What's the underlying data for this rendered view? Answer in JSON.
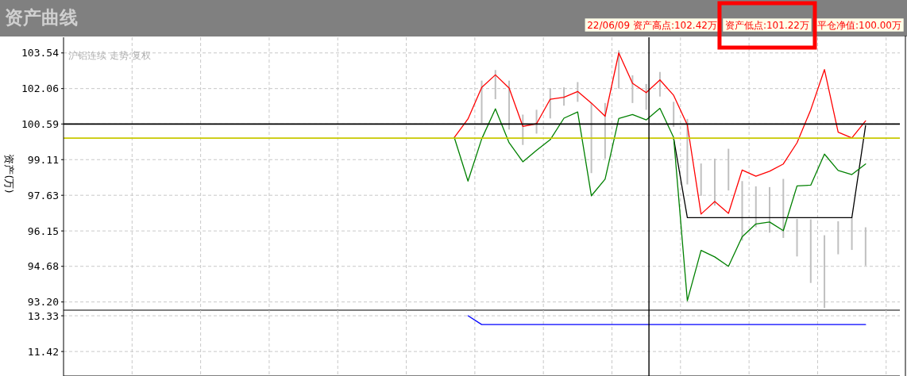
{
  "chart_data": [
    {
      "type": "line",
      "title": "资产曲线",
      "ylabel": "资产(万)",
      "annotations": [
        "22/06/09 资产高点:102.42万",
        "资产低点:101.22万",
        "平仓净值:100.00万",
        "沪铝连续 走势:复权"
      ],
      "categories": [
        null,
        null,
        null,
        null,
        null,
        null,
        null,
        null,
        null,
        null,
        null,
        null,
        null,
        null,
        null,
        null,
        null,
        null,
        null,
        null,
        null,
        null,
        null,
        null,
        null,
        null,
        null,
        null,
        null,
        null,
        null,
        null,
        null,
        null,
        null,
        null,
        null,
        null,
        null,
        null,
        null,
        null,
        null,
        null,
        null,
        null,
        null,
        null,
        null,
        null,
        null,
        null,
        null,
        null,
        null,
        null,
        null,
        null,
        null,
        null,
        null
      ],
      "ylim": [
        92.86,
        104.19
      ],
      "yticks": [
        {
          "value": 93.2,
          "label": "93.20"
        },
        94.68,
        96.15,
        97.63,
        99.11,
        100.59,
        102.06,
        103.54
      ],
      "grid": true,
      "tick_labels": "y",
      "series": [
        {
          "type": "bar",
          "color": "#c0c0c0",
          "base": [
            null,
            null,
            null,
            null,
            null,
            null,
            null,
            null,
            null,
            null,
            null,
            null,
            null,
            null,
            null,
            null,
            null,
            null,
            null,
            null,
            null,
            null,
            null,
            null,
            null,
            null,
            null,
            null,
            null,
            null,
            100.63,
            101.62,
            100.36,
            99.72,
            100.19,
            100.82,
            101.35,
            101.51,
            98.55,
            99.15,
            102.06,
            101.46,
            101.18,
            101.73,
            100.47,
            98.08,
            97.61,
            97.2,
            97.83,
            95.75,
            96.3,
            96.08,
            95.86,
            95.09,
            93.99,
            92.95,
            95.18,
            95.36,
            94.71,
            null,
            null
          ],
          "values": [
            null,
            null,
            null,
            null,
            null,
            null,
            null,
            null,
            null,
            null,
            null,
            null,
            null,
            null,
            null,
            null,
            null,
            null,
            null,
            null,
            null,
            null,
            null,
            null,
            null,
            null,
            null,
            null,
            null,
            null,
            1.76,
            1.21,
            2.03,
            1.26,
            0.99,
            1.26,
            0.76,
            0.82,
            2.91,
            2.31,
            1.59,
            1.15,
            1.07,
            1.02,
            1.04,
            2.72,
            1.34,
            1.95,
            1.73,
            2.47,
            1.7,
            1.89,
            2.45,
            1.56,
            2.64,
            3.02,
            1.37,
            1.34,
            1.59,
            null,
            null
          ]
        },
        {
          "color": "#000000",
          "values": [
            null,
            null,
            null,
            null,
            null,
            null,
            null,
            null,
            null,
            null,
            null,
            null,
            null,
            null,
            null,
            null,
            null,
            null,
            null,
            null,
            null,
            null,
            null,
            null,
            null,
            null,
            null,
            null,
            null,
            null,
            null,
            null,
            null,
            null,
            null,
            null,
            null,
            null,
            null,
            null,
            null,
            null,
            null,
            null,
            100.0,
            96.7,
            96.7,
            96.7,
            96.7,
            96.7,
            96.7,
            96.7,
            96.7,
            96.7,
            96.7,
            96.7,
            96.7,
            96.7,
            100.52,
            null,
            null
          ]
        },
        {
          "color": "#ff0000",
          "values": [
            null,
            null,
            null,
            null,
            null,
            null,
            null,
            null,
            null,
            null,
            null,
            null,
            null,
            null,
            null,
            null,
            null,
            null,
            null,
            null,
            null,
            null,
            null,
            null,
            null,
            null,
            null,
            null,
            100.03,
            100.8,
            102.11,
            102.63,
            102.08,
            100.49,
            100.6,
            101.62,
            101.7,
            101.94,
            101.46,
            100.91,
            103.54,
            102.28,
            101.89,
            102.42,
            101.78,
            100.55,
            96.85,
            97.37,
            96.88,
            98.68,
            98.42,
            98.63,
            98.93,
            99.81,
            101.18,
            102.85,
            100.25,
            100.01,
            100.72,
            null,
            null
          ]
        },
        {
          "color": "#008000",
          "values": [
            null,
            null,
            null,
            null,
            null,
            null,
            null,
            null,
            null,
            null,
            null,
            null,
            null,
            null,
            null,
            null,
            null,
            null,
            null,
            null,
            null,
            null,
            null,
            null,
            null,
            null,
            null,
            null,
            100.03,
            98.22,
            99.97,
            101.22,
            99.81,
            99.02,
            99.5,
            99.94,
            100.83,
            101.09,
            97.61,
            98.3,
            100.82,
            100.98,
            100.76,
            101.24,
            100.03,
            93.25,
            95.34,
            95.07,
            94.68,
            95.91,
            96.44,
            96.52,
            96.16,
            98.02,
            98.05,
            99.34,
            98.66,
            98.49,
            98.93,
            null,
            null
          ]
        }
      ],
      "ref_lines": [
        {
          "axis": "y",
          "value": 100.59,
          "color": "#000000"
        },
        {
          "axis": "y",
          "value": 100.0,
          "color": "#c8c800"
        }
      ]
    },
    {
      "type": "line",
      "categories": [
        null,
        null,
        null,
        null,
        null,
        null,
        null,
        null,
        null,
        null,
        null,
        null,
        null,
        null,
        null,
        null,
        null,
        null,
        null,
        null,
        null,
        null,
        null,
        null,
        null,
        null,
        null,
        null,
        null,
        null,
        null,
        null,
        null,
        null,
        null,
        null,
        null,
        null,
        null,
        null,
        null,
        null,
        null,
        null,
        null,
        null,
        null,
        null,
        null,
        null,
        null,
        null,
        null,
        null,
        null,
        null,
        null,
        null,
        null,
        null,
        null
      ],
      "ylim": [
        10.11,
        13.63
      ],
      "yticks": [
        11.42,
        13.33
      ],
      "grid": true,
      "tick_labels": "y",
      "series": [
        {
          "color": "#0000ff",
          "values": [
            null,
            null,
            null,
            null,
            null,
            null,
            null,
            null,
            null,
            null,
            null,
            null,
            null,
            null,
            null,
            null,
            null,
            null,
            null,
            null,
            null,
            null,
            null,
            null,
            null,
            null,
            null,
            null,
            null,
            13.33,
            12.86,
            12.86,
            12.86,
            12.86,
            12.86,
            12.86,
            12.86,
            12.86,
            12.86,
            12.86,
            12.86,
            12.86,
            12.86,
            12.86,
            12.86,
            12.86,
            12.86,
            12.86,
            12.86,
            12.86,
            12.86,
            12.86,
            12.86,
            12.86,
            12.86,
            12.86,
            12.86,
            12.86,
            12.86,
            null,
            null
          ]
        }
      ]
    }
  ]
}
